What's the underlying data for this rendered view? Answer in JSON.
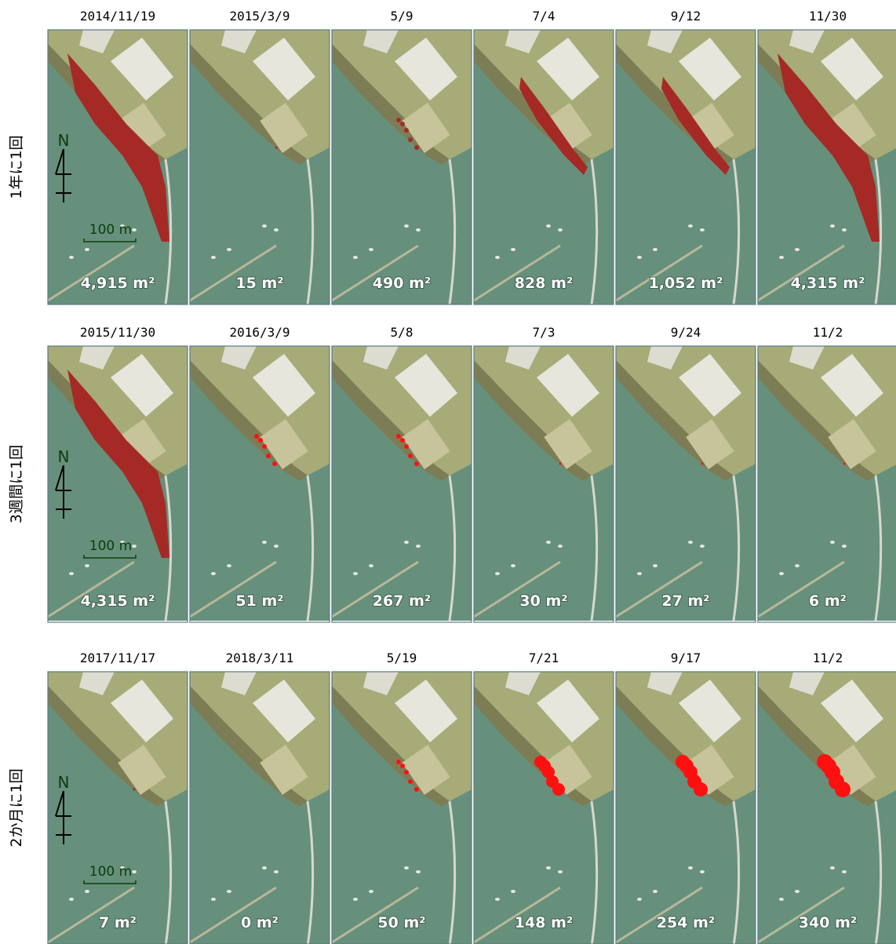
{
  "north": "N",
  "scale": "100 m",
  "rows": [
    {
      "label": "1年に1回",
      "panels": [
        {
          "date": "2014/11/19",
          "area": "4,915 m²"
        },
        {
          "date": "2015/3/9",
          "area": "15 m²"
        },
        {
          "date": "5/9",
          "area": "490 m²"
        },
        {
          "date": "7/4",
          "area": "828 m²"
        },
        {
          "date": "9/12",
          "area": "1,052 m²"
        },
        {
          "date": "11/30",
          "area": "4,315 m²"
        }
      ]
    },
    {
      "label": "3週間に1回",
      "panels": [
        {
          "date": "2015/11/30",
          "area": "4,315 m²"
        },
        {
          "date": "2016/3/9",
          "area": "51 m²"
        },
        {
          "date": "5/8",
          "area": "267 m²"
        },
        {
          "date": "7/3",
          "area": "30 m²"
        },
        {
          "date": "9/24",
          "area": "27 m²"
        },
        {
          "date": "11/2",
          "area": "6 m²"
        }
      ]
    },
    {
      "label": "2か月に1回",
      "panels": [
        {
          "date": "2017/11/17",
          "area": "7 m²"
        },
        {
          "date": "2018/3/11",
          "area": "0 m²"
        },
        {
          "date": "5/19",
          "area": "50 m²"
        },
        {
          "date": "7/21",
          "area": "148 m²"
        },
        {
          "date": "9/17",
          "area": "254 m²"
        },
        {
          "date": "11/2",
          "area": "340 m²"
        }
      ]
    }
  ]
}
